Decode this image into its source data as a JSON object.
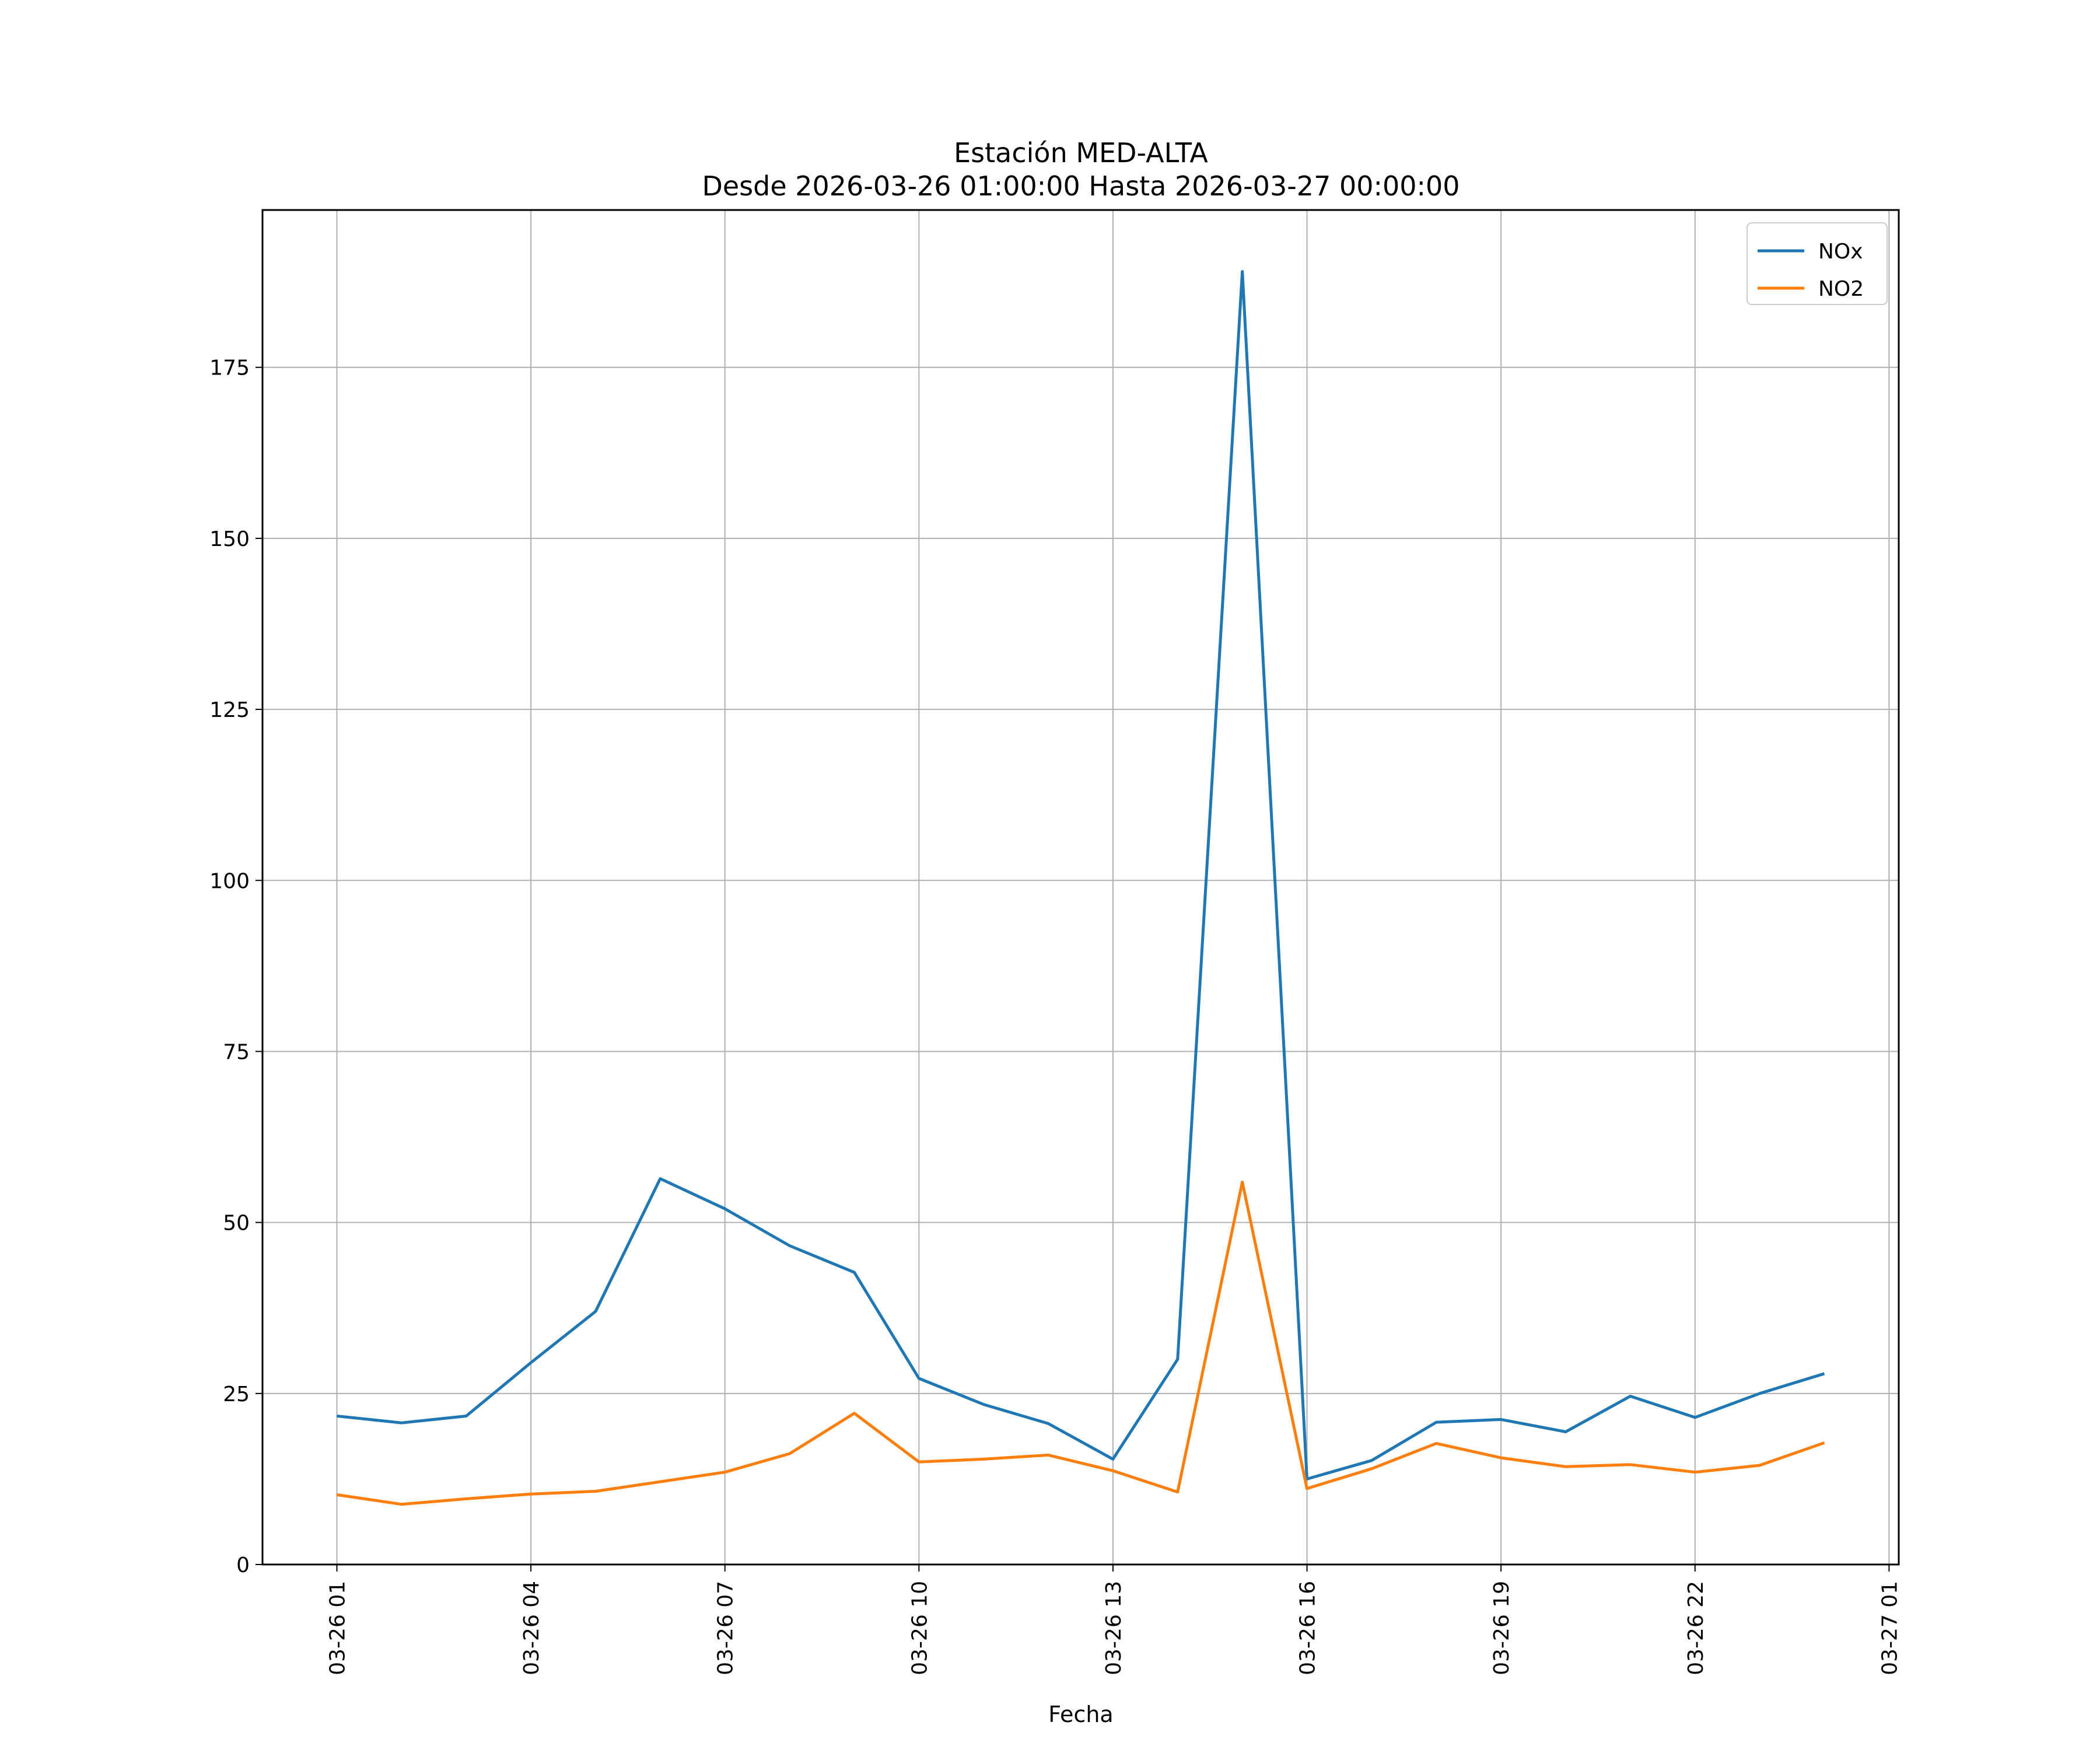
{
  "chart_data": {
    "type": "line",
    "title_line1": "Estación MED-ALTA",
    "title_line2": "Desde 2026-03-26 01:00:00 Hasta 2026-03-27 00:00:00",
    "xlabel": "Fecha",
    "ylabel": "",
    "x": [
      "2026-03-26 01:00",
      "2026-03-26 02:00",
      "2026-03-26 03:00",
      "2026-03-26 04:00",
      "2026-03-26 05:00",
      "2026-03-26 06:00",
      "2026-03-26 07:00",
      "2026-03-26 08:00",
      "2026-03-26 09:00",
      "2026-03-26 10:00",
      "2026-03-26 11:00",
      "2026-03-26 12:00",
      "2026-03-26 13:00",
      "2026-03-26 14:00",
      "2026-03-26 15:00",
      "2026-03-26 16:00",
      "2026-03-26 17:00",
      "2026-03-26 18:00",
      "2026-03-26 19:00",
      "2026-03-26 20:00",
      "2026-03-26 21:00",
      "2026-03-26 22:00",
      "2026-03-26 23:00",
      "2026-03-27 00:00"
    ],
    "series": [
      {
        "name": "NOx",
        "color": "#1f77b4",
        "values": [
          21.7,
          20.7,
          21.7,
          29.5,
          37.0,
          56.4,
          52.0,
          46.6,
          42.7,
          27.2,
          23.4,
          20.6,
          15.4,
          30.0,
          189.0,
          12.5,
          15.2,
          20.8,
          21.2,
          19.4,
          24.6,
          21.5,
          25.0,
          27.9
        ]
      },
      {
        "name": "NO2",
        "color": "#ff7f0e",
        "values": [
          10.2,
          8.8,
          9.6,
          10.3,
          10.7,
          12.1,
          13.5,
          16.2,
          22.1,
          15.0,
          15.4,
          16.0,
          13.7,
          10.6,
          55.9,
          11.1,
          14.0,
          17.7,
          15.6,
          14.3,
          14.6,
          13.5,
          14.5,
          17.8
        ]
      }
    ],
    "xticks": [
      "03-26 01",
      "03-26 04",
      "03-26 07",
      "03-26 10",
      "03-26 13",
      "03-26 16",
      "03-26 19",
      "03-26 22",
      "03-27 01"
    ],
    "yticks": [
      0,
      25,
      50,
      75,
      100,
      125,
      150,
      175
    ],
    "ylim": [
      0,
      198
    ],
    "xlim_hours": [
      -1.15,
      24.15
    ],
    "grid": true,
    "legend_position": "top-right"
  }
}
